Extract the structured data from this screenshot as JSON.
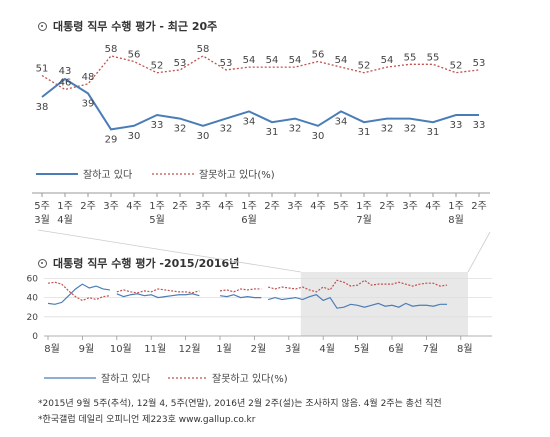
{
  "chart1_title": "대통령 직무 수행 평가 - 최근 20주",
  "chart2_title": "대통령 직무 수행 평가 -2015/2016년",
  "footnote_1": "*2015년 9월 5주(추석), 12월 4, 5주(연말), 2016년 2월 2주(설)는 조사하지 않음. 4월 2주는 총선 직전",
  "footnote_2": "*한국갤럽 데일리 오피니언 제223호 www.gallup.co.kr",
  "colors": {
    "positive": "#4a7db8",
    "negative": "#c0504d",
    "highlight": "#e8e8e8"
  },
  "chart_data": [
    {
      "type": "line",
      "title": "대통령 직무 수행 평가 - 최근 20주",
      "x": [
        "5주",
        "1주",
        "2주",
        "3주",
        "4주",
        "1주",
        "2주",
        "3주",
        "4주",
        "1주",
        "2주",
        "3주",
        "4주",
        "5주",
        "1주",
        "2주",
        "3주",
        "4주",
        "1주",
        "2주"
      ],
      "month_labels": [
        {
          "index": 0,
          "label": "3월"
        },
        {
          "index": 1,
          "label": "4월"
        },
        {
          "index": 5,
          "label": "5월"
        },
        {
          "index": 9,
          "label": "6월"
        },
        {
          "index": 14,
          "label": "7월"
        },
        {
          "index": 18,
          "label": "8월"
        }
      ],
      "series": [
        {
          "name": "잘하고 있다",
          "color": "#4a7db8",
          "style": "solid",
          "values": [
            38,
            43,
            39,
            29,
            30,
            33,
            32,
            30,
            32,
            34,
            31,
            32,
            30,
            34,
            31,
            32,
            32,
            31,
            33,
            33
          ]
        },
        {
          "name": "잘못하고 있다(%)",
          "color": "#c0504d",
          "style": "dotted",
          "values": [
            51,
            46,
            48,
            58,
            56,
            52,
            53,
            58,
            53,
            54,
            54,
            54,
            56,
            54,
            52,
            54,
            55,
            55,
            52,
            53
          ]
        }
      ],
      "legend": "bottom"
    },
    {
      "type": "line",
      "title": "대통령 직무 수행 평가 -2015/2016년",
      "x": [
        "8월",
        "9월",
        "10월",
        "11월",
        "12월",
        "1월",
        "2월",
        "3월",
        "4월",
        "5월",
        "6월",
        "7월",
        "8월"
      ],
      "y_ticks": [
        0,
        20,
        40,
        60
      ],
      "ylim": [
        0,
        70
      ],
      "highlight_range": [
        "3월",
        "8월"
      ],
      "series": [
        {
          "name": "잘하고 있다",
          "color": "#4a7db8",
          "style": "solid",
          "segments": [
            [
              [
                0,
                34
              ],
              [
                0.2,
                33
              ],
              [
                0.4,
                35
              ],
              [
                0.6,
                42
              ],
              [
                0.8,
                49
              ],
              [
                1.0,
                54
              ],
              [
                1.2,
                50
              ],
              [
                1.4,
                52
              ],
              [
                1.6,
                49
              ],
              [
                1.8,
                48
              ]
            ],
            [
              [
                2.0,
                44
              ],
              [
                2.2,
                41
              ],
              [
                2.4,
                43
              ],
              [
                2.6,
                44
              ],
              [
                2.8,
                42
              ],
              [
                3.0,
                43
              ],
              [
                3.2,
                40
              ],
              [
                3.4,
                41
              ],
              [
                3.6,
                42
              ],
              [
                3.8,
                43
              ],
              [
                4.0,
                43
              ],
              [
                4.2,
                44
              ],
              [
                4.4,
                42
              ]
            ],
            [
              [
                5.0,
                42
              ],
              [
                5.2,
                41
              ],
              [
                5.4,
                43
              ],
              [
                5.6,
                40
              ],
              [
                5.8,
                41
              ],
              [
                6.0,
                40
              ],
              [
                6.2,
                40
              ]
            ],
            [
              [
                6.4,
                38
              ],
              [
                6.6,
                40
              ],
              [
                6.8,
                38
              ],
              [
                7.0,
                39
              ],
              [
                7.2,
                40
              ],
              [
                7.4,
                38
              ],
              [
                7.6,
                41
              ],
              [
                7.8,
                43
              ],
              [
                8.0,
                37
              ],
              [
                8.2,
                40
              ],
              [
                8.4,
                29
              ],
              [
                8.6,
                30
              ],
              [
                8.8,
                33
              ],
              [
                9.0,
                32
              ],
              [
                9.2,
                30
              ],
              [
                9.4,
                32
              ],
              [
                9.6,
                34
              ],
              [
                9.8,
                31
              ],
              [
                10.0,
                32
              ],
              [
                10.2,
                30
              ],
              [
                10.4,
                34
              ],
              [
                10.6,
                31
              ],
              [
                10.8,
                32
              ],
              [
                11.0,
                32
              ],
              [
                11.2,
                31
              ],
              [
                11.4,
                33
              ],
              [
                11.6,
                33
              ]
            ]
          ]
        },
        {
          "name": "잘못하고 있다(%)",
          "color": "#c0504d",
          "style": "dotted",
          "segments": [
            [
              [
                0,
                55
              ],
              [
                0.2,
                56
              ],
              [
                0.4,
                54
              ],
              [
                0.6,
                47
              ],
              [
                0.8,
                41
              ],
              [
                1.0,
                37
              ],
              [
                1.2,
                40
              ],
              [
                1.4,
                38
              ],
              [
                1.6,
                41
              ],
              [
                1.8,
                42
              ]
            ],
            [
              [
                2.0,
                46
              ],
              [
                2.2,
                48
              ],
              [
                2.4,
                46
              ],
              [
                2.6,
                45
              ],
              [
                2.8,
                47
              ],
              [
                3.0,
                46
              ],
              [
                3.2,
                49
              ],
              [
                3.4,
                48
              ],
              [
                3.6,
                47
              ],
              [
                3.8,
                46
              ],
              [
                4.0,
                46
              ],
              [
                4.2,
                45
              ],
              [
                4.4,
                47
              ]
            ],
            [
              [
                5.0,
                47
              ],
              [
                5.2,
                48
              ],
              [
                5.4,
                46
              ],
              [
                5.6,
                49
              ],
              [
                5.8,
                48
              ],
              [
                6.0,
                49
              ],
              [
                6.2,
                49
              ]
            ],
            [
              [
                6.4,
                51
              ],
              [
                6.6,
                49
              ],
              [
                6.8,
                51
              ],
              [
                7.0,
                50
              ],
              [
                7.2,
                49
              ],
              [
                7.4,
                51
              ],
              [
                7.6,
                48
              ],
              [
                7.8,
                46
              ],
              [
                8.0,
                51
              ],
              [
                8.2,
                48
              ],
              [
                8.4,
                58
              ],
              [
                8.6,
                56
              ],
              [
                8.8,
                52
              ],
              [
                9.0,
                53
              ],
              [
                9.2,
                58
              ],
              [
                9.4,
                53
              ],
              [
                9.6,
                54
              ],
              [
                9.8,
                54
              ],
              [
                10.0,
                54
              ],
              [
                10.2,
                56
              ],
              [
                10.4,
                54
              ],
              [
                10.6,
                52
              ],
              [
                10.8,
                54
              ],
              [
                11.0,
                55
              ],
              [
                11.2,
                55
              ],
              [
                11.4,
                52
              ],
              [
                11.6,
                53
              ]
            ]
          ]
        }
      ],
      "legend": "bottom"
    }
  ]
}
